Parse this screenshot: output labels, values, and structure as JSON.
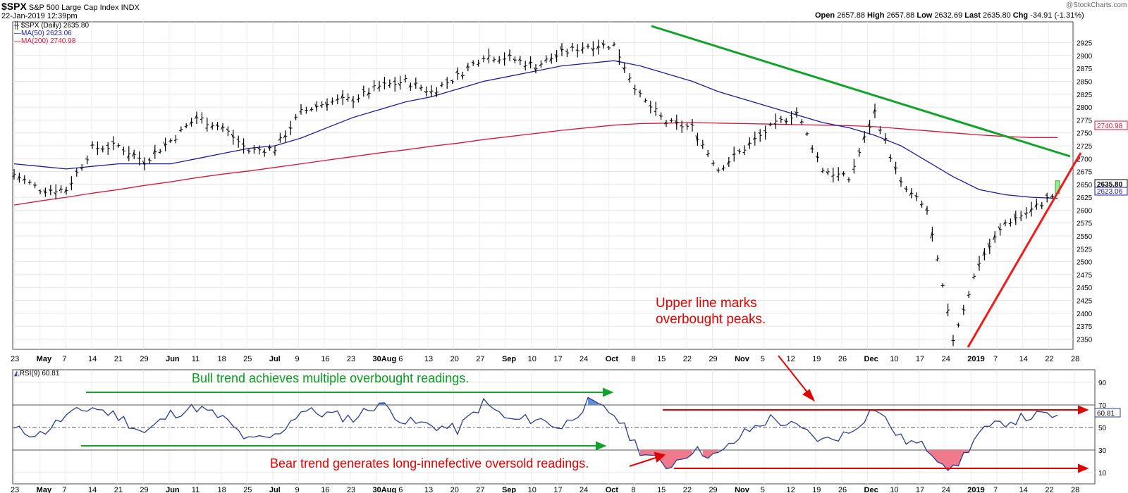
{
  "header": {
    "symbol": "$SPX",
    "name": "S&P 500 Large Cap Index",
    "exchange": "INDX",
    "date": "22-Jan-2019 12:39pm",
    "watermark": "@StockCharts.com",
    "quote": {
      "open_label": "Open",
      "open": "2657.88",
      "high_label": "High",
      "high": "2657.88",
      "low_label": "Low",
      "low": "2632.69",
      "last_label": "Last",
      "last": "2635.80",
      "chg_label": "Chg",
      "chg": "-34.91 (-1.31%)"
    }
  },
  "legend": {
    "price": "$SPX (Daily) 2635.80",
    "ma50": "MA(50) 2623.06",
    "ma200": "MA(200) 2740.98"
  },
  "rsi_legend": "RSI(9) 60.81",
  "annotations": {
    "upper_line": [
      "Upper line marks",
      "overbought peaks."
    ],
    "bull_trend": "Bull trend achieves multiple overbought readings.",
    "bear_trend": "Bear trend generates long-innefective oversold readings."
  },
  "chart_data": [
    {
      "type": "line",
      "title": "$SPX S&P 500 Large Cap Index",
      "xlabel": "",
      "ylabel": "",
      "ylim": [
        2330,
        2960
      ],
      "y_ticks": [
        2350,
        2375,
        2400,
        2425,
        2450,
        2475,
        2500,
        2525,
        2550,
        2575,
        2600,
        2625,
        2650,
        2675,
        2700,
        2725,
        2750,
        2775,
        2800,
        2825,
        2850,
        2875,
        2900,
        2925
      ],
      "x_tick_labels": [
        "23",
        "May",
        "7",
        "14",
        "21",
        "29",
        "Jun",
        "11",
        "18",
        "25",
        "Jul",
        "9",
        "16",
        "23",
        "30Aug",
        "6",
        "13",
        "20",
        "27",
        "Sep",
        "10",
        "17",
        "24",
        "Oct",
        "8",
        "15",
        "22",
        "29",
        "Nov",
        "5",
        "12",
        "19",
        "26",
        "Dec",
        "10",
        "17",
        "24",
        "2019",
        "7",
        "14",
        "22",
        "28"
      ],
      "x": [
        "Apr 23",
        "May 1",
        "May 7",
        "May 14",
        "May 21",
        "May 29",
        "Jun 1",
        "Jun 11",
        "Jun 18",
        "Jun 25",
        "Jul 2",
        "Jul 9",
        "Jul 16",
        "Jul 23",
        "Jul 30",
        "Aug 6",
        "Aug 13",
        "Aug 20",
        "Aug 27",
        "Sep 4",
        "Sep 10",
        "Sep 17",
        "Sep 24",
        "Oct 1",
        "Oct 8",
        "Oct 15",
        "Oct 22",
        "Oct 29",
        "Nov 2",
        "Nov 5",
        "Nov 12",
        "Nov 19",
        "Nov 26",
        "Dec 3",
        "Dec 10",
        "Dec 17",
        "Dec 24",
        "Jan 2",
        "Jan 7",
        "Jan 14",
        "Jan 22"
      ],
      "series": [
        {
          "name": "$SPX (Daily)",
          "values": [
            2670,
            2640,
            2640,
            2720,
            2725,
            2695,
            2735,
            2780,
            2760,
            2715,
            2720,
            2790,
            2810,
            2815,
            2840,
            2850,
            2830,
            2860,
            2900,
            2895,
            2880,
            2905,
            2920,
            2920,
            2820,
            2770,
            2760,
            2680,
            2720,
            2760,
            2790,
            2680,
            2660,
            2790,
            2650,
            2600,
            2350,
            2500,
            2575,
            2600,
            2635
          ]
        },
        {
          "name": "MA(50)",
          "values": [
            2690,
            2685,
            2680,
            2685,
            2690,
            2690,
            2690,
            2700,
            2710,
            2720,
            2725,
            2740,
            2760,
            2780,
            2795,
            2810,
            2820,
            2835,
            2850,
            2860,
            2870,
            2880,
            2885,
            2890,
            2880,
            2865,
            2850,
            2830,
            2815,
            2800,
            2785,
            2770,
            2760,
            2745,
            2725,
            2695,
            2665,
            2640,
            2630,
            2625,
            2623
          ]
        },
        {
          "name": "MA(200)",
          "values": [
            2610,
            2618,
            2625,
            2633,
            2640,
            2648,
            2655,
            2663,
            2670,
            2676,
            2683,
            2690,
            2697,
            2704,
            2711,
            2717,
            2724,
            2730,
            2737,
            2743,
            2749,
            2755,
            2760,
            2765,
            2768,
            2769,
            2770,
            2769,
            2768,
            2767,
            2766,
            2765,
            2764,
            2762,
            2758,
            2754,
            2750,
            2746,
            2743,
            2741,
            2741
          ]
        }
      ]
    },
    {
      "type": "line",
      "title": "RSI(9)",
      "ylim": [
        0,
        100
      ],
      "y_ticks": [
        10,
        30,
        50,
        70,
        90
      ],
      "x": [
        "Apr 23",
        "May 1",
        "May 7",
        "May 14",
        "May 21",
        "May 29",
        "Jun 1",
        "Jun 11",
        "Jun 18",
        "Jun 25",
        "Jul 2",
        "Jul 9",
        "Jul 16",
        "Jul 23",
        "Jul 30",
        "Aug 6",
        "Aug 13",
        "Aug 20",
        "Aug 27",
        "Sep 4",
        "Sep 10",
        "Sep 17",
        "Sep 24",
        "Oct 1",
        "Oct 8",
        "Oct 15",
        "Oct 22",
        "Oct 29",
        "Nov 2",
        "Nov 5",
        "Nov 12",
        "Nov 19",
        "Nov 26",
        "Dec 3",
        "Dec 10",
        "Dec 17",
        "Dec 24",
        "Jan 2",
        "Jan 7",
        "Jan 14",
        "Jan 22"
      ],
      "series": [
        {
          "name": "RSI(9)",
          "values": [
            48,
            44,
            60,
            68,
            60,
            45,
            62,
            68,
            58,
            38,
            42,
            65,
            62,
            58,
            72,
            55,
            52,
            48,
            72,
            56,
            58,
            50,
            72,
            62,
            30,
            15,
            30,
            25,
            45,
            58,
            50,
            38,
            45,
            68,
            40,
            32,
            12,
            45,
            55,
            60,
            61
          ]
        }
      ]
    }
  ]
}
